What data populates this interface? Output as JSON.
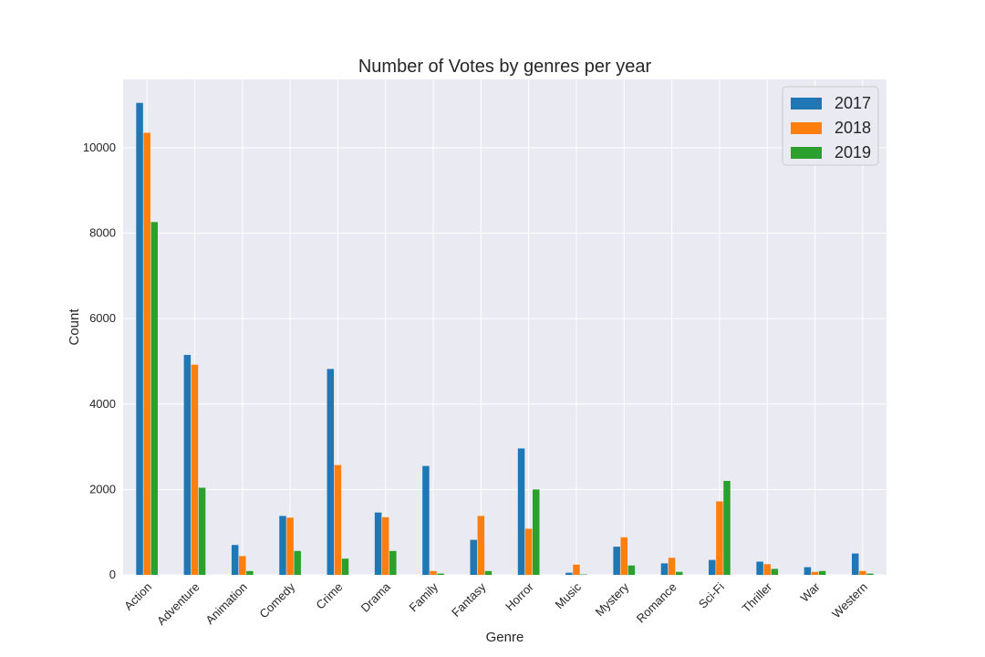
{
  "chart_data": {
    "type": "bar",
    "title": "Number of Votes by genres per year",
    "xlabel": "Genre",
    "ylabel": "Count",
    "ylim": [
      0,
      11600
    ],
    "yticks": [
      0,
      2000,
      4000,
      6000,
      8000,
      10000
    ],
    "categories": [
      "Action",
      "Adventure",
      "Animation",
      "Comedy",
      "Crime",
      "Drama",
      "Family",
      "Fantasy",
      "Horror",
      "Music",
      "Mystery",
      "Romance",
      "Sci-Fi",
      "Thriller",
      "War",
      "Western"
    ],
    "series": [
      {
        "name": "2017",
        "color": "#1f77b4",
        "values": [
          11050,
          5150,
          700,
          1380,
          4820,
          1460,
          2550,
          820,
          2960,
          50,
          660,
          270,
          350,
          310,
          180,
          500
        ]
      },
      {
        "name": "2018",
        "color": "#ff7f0e",
        "values": [
          10350,
          4920,
          440,
          1340,
          2570,
          1350,
          90,
          1380,
          1080,
          240,
          880,
          400,
          1720,
          250,
          70,
          90
        ]
      },
      {
        "name": "2019",
        "color": "#2ca02c",
        "values": [
          8260,
          2040,
          90,
          560,
          380,
          560,
          30,
          90,
          2000,
          10,
          220,
          70,
          2200,
          140,
          90,
          30
        ]
      }
    ],
    "grid": true,
    "legend_position": "top-right"
  }
}
